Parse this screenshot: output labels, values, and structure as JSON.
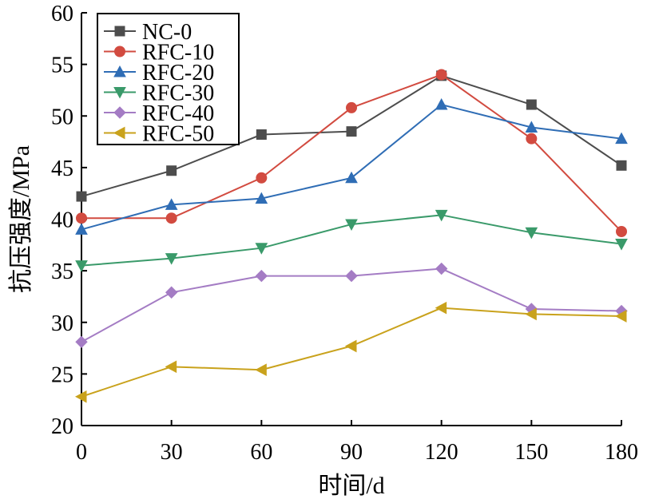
{
  "chart_data": {
    "type": "line",
    "title": "",
    "xlabel": "时间/d",
    "ylabel": "抗压强度/MPa",
    "x": [
      0,
      30,
      60,
      90,
      120,
      150,
      180
    ],
    "xlim": [
      0,
      180
    ],
    "ylim": [
      20,
      60
    ],
    "xticks": [
      "0",
      "30",
      "60",
      "90",
      "120",
      "150",
      "180"
    ],
    "yticks": [
      "20",
      "25",
      "30",
      "35",
      "40",
      "45",
      "50",
      "55",
      "60"
    ],
    "grid": false,
    "legend_position": "top-left",
    "series": [
      {
        "name": "NC-0",
        "color": "#4d4d4d",
        "marker": "square",
        "values": [
          42.2,
          44.7,
          48.2,
          48.5,
          53.9,
          51.1,
          45.2
        ]
      },
      {
        "name": "RFC-10",
        "color": "#d24b40",
        "marker": "circle",
        "values": [
          40.1,
          40.1,
          44.0,
          50.8,
          54.0,
          47.8,
          38.8
        ]
      },
      {
        "name": "RFC-20",
        "color": "#2f6db5",
        "marker": "triangle-up",
        "values": [
          39.0,
          41.4,
          42.0,
          44.0,
          51.1,
          48.9,
          47.8
        ]
      },
      {
        "name": "RFC-30",
        "color": "#3a9a6a",
        "marker": "triangle-down",
        "values": [
          35.5,
          36.2,
          37.2,
          39.5,
          40.4,
          38.7,
          37.6
        ]
      },
      {
        "name": "RFC-40",
        "color": "#a47cc4",
        "marker": "diamond",
        "values": [
          28.1,
          32.9,
          34.5,
          34.5,
          35.2,
          31.3,
          31.1
        ]
      },
      {
        "name": "RFC-50",
        "color": "#c9a21c",
        "marker": "triangle-left",
        "values": [
          22.8,
          25.7,
          25.4,
          27.7,
          31.4,
          30.8,
          30.6
        ]
      }
    ]
  }
}
